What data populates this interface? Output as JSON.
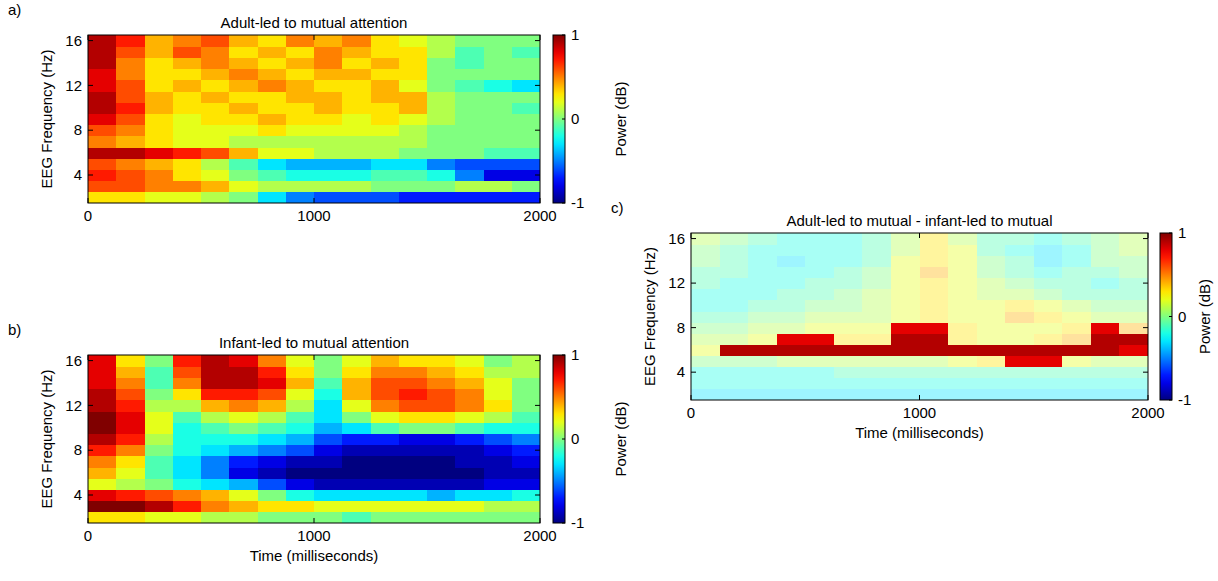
{
  "chart_data": [
    {
      "type": "heatmap",
      "panel_label": "a)",
      "title": "Adult-led to mutual attention",
      "y_label": "EEG Frequency (Hz)",
      "x": [
        0,
        125,
        250,
        375,
        500,
        625,
        750,
        875,
        1000,
        1125,
        1250,
        1375,
        1500,
        1625,
        1750,
        1875
      ],
      "y": [
        2,
        3,
        4,
        5,
        6,
        7,
        8,
        9,
        10,
        11,
        12,
        13,
        14,
        15,
        16
      ],
      "xlim": [
        0,
        2000
      ],
      "ylim": [
        1.5,
        16.5
      ],
      "xticks": [
        0,
        1000,
        2000
      ],
      "yticks": [
        4,
        8,
        12,
        16
      ],
      "cells": [
        [
          0.3,
          0.3,
          0.2,
          0.2,
          0.1,
          0.0,
          -0.3,
          -0.5,
          -0.6,
          -0.6,
          -0.6,
          -0.7,
          -0.7,
          -0.7,
          -0.7,
          -0.7
        ],
        [
          0.6,
          0.6,
          0.5,
          0.5,
          0.4,
          0.2,
          0.1,
          0.1,
          0.1,
          0.1,
          0.0,
          0.0,
          0.0,
          0.1,
          0.1,
          0.0
        ],
        [
          0.7,
          0.6,
          0.5,
          0.3,
          0.2,
          0.0,
          -0.1,
          -0.2,
          -0.2,
          -0.2,
          -0.1,
          -0.1,
          -0.2,
          -0.5,
          -0.8,
          -0.8
        ],
        [
          0.6,
          0.5,
          0.4,
          0.3,
          0.1,
          -0.1,
          -0.3,
          -0.4,
          -0.4,
          -0.4,
          -0.3,
          -0.3,
          -0.5,
          -0.6,
          -0.6,
          -0.6
        ],
        [
          0.9,
          0.9,
          0.8,
          0.7,
          0.6,
          0.4,
          0.2,
          0.2,
          0.1,
          0.1,
          0.1,
          0.0,
          0.0,
          0.0,
          -0.1,
          -0.1
        ],
        [
          0.5,
          0.4,
          0.3,
          0.2,
          0.2,
          0.1,
          0.1,
          0.1,
          0.1,
          0.1,
          0.1,
          0.1,
          0.0,
          0.0,
          0.0,
          0.0
        ],
        [
          0.6,
          0.5,
          0.3,
          0.2,
          0.2,
          0.2,
          0.3,
          0.2,
          0.2,
          0.2,
          0.2,
          0.1,
          0.0,
          0.0,
          0.0,
          0.0
        ],
        [
          0.8,
          0.6,
          0.3,
          0.2,
          0.3,
          0.3,
          0.4,
          0.3,
          0.3,
          0.2,
          0.3,
          0.2,
          0.1,
          0.0,
          0.0,
          0.0
        ],
        [
          0.9,
          0.7,
          0.4,
          0.3,
          0.3,
          0.4,
          0.3,
          0.3,
          0.4,
          0.3,
          0.3,
          0.4,
          0.1,
          0.0,
          0.0,
          -0.1
        ],
        [
          0.9,
          0.6,
          0.4,
          0.3,
          0.4,
          0.3,
          0.3,
          0.4,
          0.4,
          0.3,
          0.4,
          0.4,
          0.1,
          0.0,
          0.0,
          0.0
        ],
        [
          0.8,
          0.6,
          0.3,
          0.4,
          0.3,
          0.4,
          0.5,
          0.4,
          0.3,
          0.3,
          0.4,
          0.2,
          0.0,
          -0.1,
          -0.2,
          -0.3
        ],
        [
          0.8,
          0.5,
          0.3,
          0.3,
          0.4,
          0.5,
          0.4,
          0.3,
          0.4,
          0.4,
          0.3,
          0.3,
          0.0,
          0.0,
          0.0,
          0.0
        ],
        [
          0.9,
          0.5,
          0.3,
          0.4,
          0.5,
          0.4,
          0.3,
          0.4,
          0.5,
          0.3,
          0.4,
          0.3,
          0.0,
          -0.1,
          0.0,
          0.0
        ],
        [
          0.9,
          0.6,
          0.4,
          0.6,
          0.5,
          0.3,
          0.4,
          0.3,
          0.5,
          0.4,
          0.3,
          0.3,
          0.1,
          -0.1,
          0.0,
          -0.1
        ],
        [
          0.9,
          0.7,
          0.4,
          0.5,
          0.6,
          0.4,
          0.3,
          0.5,
          0.4,
          0.5,
          0.3,
          0.2,
          0.1,
          0.0,
          0.0,
          0.0
        ]
      ],
      "colorbar": {
        "label": "Power (dB)",
        "range": [
          -1,
          1
        ],
        "ticks": [
          -1,
          0,
          1
        ]
      }
    },
    {
      "type": "heatmap",
      "panel_label": "b)",
      "title": "Infant-led to mutual attention",
      "x_label": "Time (milliseconds)",
      "y_label": "EEG Frequency (Hz)",
      "x": [
        0,
        125,
        250,
        375,
        500,
        625,
        750,
        875,
        1000,
        1125,
        1250,
        1375,
        1500,
        1625,
        1750,
        1875
      ],
      "y": [
        2,
        3,
        4,
        5,
        6,
        7,
        8,
        9,
        10,
        11,
        12,
        13,
        14,
        15,
        16
      ],
      "xlim": [
        0,
        2000
      ],
      "ylim": [
        1.5,
        16.5
      ],
      "xticks": [
        0,
        1000,
        2000
      ],
      "yticks": [
        4,
        8,
        12,
        16
      ],
      "cells": [
        [
          0.3,
          0.3,
          0.2,
          0.2,
          0.1,
          0.1,
          0.0,
          0.0,
          0.0,
          -0.1,
          0.0,
          0.0,
          0.0,
          0.0,
          0.0,
          0.0
        ],
        [
          1.0,
          1.0,
          0.9,
          0.7,
          0.5,
          0.4,
          0.3,
          0.3,
          0.2,
          0.2,
          0.2,
          0.2,
          0.2,
          0.2,
          0.1,
          0.1
        ],
        [
          0.8,
          0.7,
          0.6,
          0.5,
          0.4,
          0.2,
          0.0,
          -0.2,
          -0.3,
          -0.3,
          -0.3,
          -0.3,
          -0.4,
          -0.3,
          -0.3,
          -0.2
        ],
        [
          0.2,
          0.1,
          0.0,
          -0.2,
          -0.3,
          -0.4,
          -0.6,
          -0.8,
          -0.9,
          -0.9,
          -0.9,
          -0.9,
          -0.9,
          -0.9,
          -0.8,
          -0.8
        ],
        [
          0.4,
          0.2,
          -0.1,
          -0.3,
          -0.5,
          -0.8,
          -0.9,
          -1.0,
          -1.0,
          -1.0,
          -1.0,
          -1.0,
          -1.0,
          -1.0,
          -0.9,
          -0.9
        ],
        [
          0.5,
          0.3,
          -0.1,
          -0.3,
          -0.5,
          -0.7,
          -0.8,
          -0.9,
          -0.9,
          -1.0,
          -1.0,
          -1.0,
          -1.0,
          -0.9,
          -0.9,
          -0.8
        ],
        [
          0.7,
          0.5,
          0.0,
          -0.2,
          -0.3,
          -0.4,
          -0.5,
          -0.6,
          -0.8,
          -0.9,
          -0.9,
          -0.9,
          -0.9,
          -0.9,
          -0.8,
          -0.7
        ],
        [
          0.9,
          0.7,
          0.1,
          -0.2,
          -0.2,
          -0.2,
          -0.3,
          -0.4,
          -0.6,
          -0.7,
          -0.7,
          -0.8,
          -0.8,
          -0.7,
          -0.6,
          -0.5
        ],
        [
          1.0,
          0.8,
          0.2,
          -0.2,
          -0.1,
          0.0,
          -0.1,
          -0.2,
          -0.4,
          -0.3,
          -0.1,
          0.0,
          0.0,
          -0.1,
          -0.2,
          -0.2
        ],
        [
          1.0,
          0.8,
          0.2,
          -0.1,
          0.1,
          0.2,
          0.1,
          -0.1,
          -0.3,
          0.0,
          0.2,
          0.3,
          0.3,
          0.2,
          0.1,
          -0.1
        ],
        [
          0.9,
          0.7,
          0.1,
          0.1,
          0.4,
          0.5,
          0.4,
          0.1,
          -0.3,
          0.2,
          0.5,
          0.6,
          0.6,
          0.5,
          0.3,
          0.0
        ],
        [
          0.9,
          0.6,
          0.0,
          0.3,
          0.7,
          0.7,
          0.6,
          0.2,
          -0.2,
          0.4,
          0.6,
          0.7,
          0.6,
          0.5,
          0.2,
          0.0
        ],
        [
          0.8,
          0.5,
          -0.1,
          0.5,
          0.9,
          0.9,
          0.8,
          0.4,
          -0.1,
          0.4,
          0.6,
          0.6,
          0.5,
          0.4,
          0.2,
          0.0
        ],
        [
          0.8,
          0.4,
          -0.1,
          0.6,
          0.9,
          0.9,
          0.7,
          0.3,
          0.0,
          0.3,
          0.5,
          0.5,
          0.4,
          0.3,
          0.1,
          0.1
        ],
        [
          0.8,
          0.3,
          0.0,
          0.7,
          0.9,
          0.8,
          0.5,
          0.2,
          0.0,
          0.2,
          0.4,
          0.3,
          0.3,
          0.2,
          0.0,
          0.1
        ]
      ],
      "colorbar": {
        "label": "Power (dB)",
        "range": [
          -1,
          1
        ],
        "ticks": [
          -1,
          0,
          1
        ]
      }
    },
    {
      "type": "heatmap",
      "panel_label": "c)",
      "title": "Adult-led to mutual - infant-led to mutual",
      "x_label": "Time (milliseconds)",
      "y_label": "EEG Frequency (Hz)",
      "x": [
        0,
        125,
        250,
        375,
        500,
        625,
        750,
        875,
        1000,
        1125,
        1250,
        1375,
        1500,
        1625,
        1750,
        1875
      ],
      "y": [
        2,
        3,
        4,
        5,
        6,
        7,
        8,
        9,
        10,
        11,
        12,
        13,
        14,
        15,
        16
      ],
      "xlim": [
        0,
        2000
      ],
      "ylim": [
        1.5,
        16.5
      ],
      "xticks": [
        0,
        1000,
        2000
      ],
      "yticks": [
        4,
        8,
        12,
        16
      ],
      "threshold": 0.7,
      "cells": [
        [
          -0.3,
          -0.3,
          -0.3,
          -0.3,
          -0.3,
          -0.3,
          -0.3,
          -0.3,
          -0.3,
          -0.3,
          -0.3,
          -0.3,
          -0.3,
          -0.3,
          -0.3,
          -0.3
        ],
        [
          -0.2,
          -0.2,
          -0.2,
          -0.2,
          -0.2,
          -0.2,
          -0.2,
          -0.2,
          -0.2,
          -0.2,
          -0.2,
          -0.2,
          -0.2,
          -0.2,
          -0.2,
          -0.2
        ],
        [
          -0.2,
          -0.2,
          -0.2,
          -0.2,
          -0.2,
          -0.1,
          -0.1,
          -0.1,
          -0.1,
          -0.1,
          -0.1,
          -0.1,
          -0.1,
          -0.1,
          -0.1,
          -0.1
        ],
        [
          0.0,
          0.0,
          0.0,
          0.1,
          0.1,
          0.1,
          0.1,
          0.1,
          0.1,
          0.2,
          0.3,
          0.8,
          0.8,
          0.2,
          0.1,
          0.1
        ],
        [
          0.2,
          0.9,
          0.9,
          0.9,
          0.9,
          0.9,
          0.9,
          0.9,
          0.9,
          0.9,
          0.9,
          0.9,
          0.9,
          0.9,
          0.9,
          0.8
        ],
        [
          0.1,
          0.1,
          0.2,
          0.8,
          0.8,
          0.3,
          0.3,
          0.9,
          0.9,
          0.3,
          0.2,
          0.2,
          0.3,
          0.4,
          0.9,
          0.9
        ],
        [
          0.0,
          0.0,
          0.1,
          0.1,
          0.2,
          0.2,
          0.2,
          0.8,
          0.8,
          0.3,
          0.2,
          0.2,
          0.2,
          0.3,
          0.8,
          0.4
        ],
        [
          -0.1,
          -0.1,
          0.0,
          0.0,
          0.1,
          0.1,
          0.1,
          0.2,
          0.3,
          0.2,
          0.2,
          0.4,
          0.3,
          0.2,
          0.1,
          0.1
        ],
        [
          -0.2,
          -0.2,
          -0.1,
          -0.1,
          0.0,
          0.0,
          0.1,
          0.2,
          0.3,
          0.2,
          0.2,
          0.3,
          0.2,
          0.1,
          0.0,
          0.0
        ],
        [
          -0.2,
          -0.2,
          -0.2,
          -0.1,
          -0.1,
          0.0,
          0.1,
          0.2,
          0.3,
          0.2,
          0.1,
          0.1,
          0.0,
          -0.1,
          -0.1,
          -0.1
        ],
        [
          -0.1,
          -0.2,
          -0.2,
          -0.2,
          -0.1,
          -0.1,
          0.0,
          0.2,
          0.3,
          0.2,
          0.1,
          0.0,
          -0.1,
          -0.1,
          -0.2,
          -0.1
        ],
        [
          -0.1,
          -0.1,
          -0.2,
          -0.2,
          -0.2,
          -0.1,
          0.0,
          0.2,
          0.4,
          0.2,
          0.0,
          -0.1,
          -0.2,
          -0.1,
          -0.1,
          0.0
        ],
        [
          0.0,
          -0.1,
          -0.2,
          -0.3,
          -0.2,
          -0.2,
          -0.1,
          0.2,
          0.3,
          0.2,
          0.0,
          -0.1,
          -0.3,
          -0.2,
          0.0,
          0.0
        ],
        [
          0.0,
          -0.1,
          -0.2,
          -0.2,
          -0.2,
          -0.2,
          -0.1,
          0.1,
          0.3,
          0.2,
          -0.1,
          -0.2,
          -0.3,
          -0.2,
          0.0,
          0.1
        ],
        [
          0.1,
          0.0,
          -0.1,
          -0.2,
          -0.2,
          -0.2,
          -0.1,
          0.1,
          0.3,
          0.1,
          -0.1,
          -0.1,
          -0.2,
          -0.1,
          0.0,
          0.1
        ]
      ],
      "colorbar": {
        "label": "Power (dB)",
        "range": [
          -1,
          1
        ],
        "ticks": [
          -1,
          0,
          1
        ]
      }
    }
  ]
}
